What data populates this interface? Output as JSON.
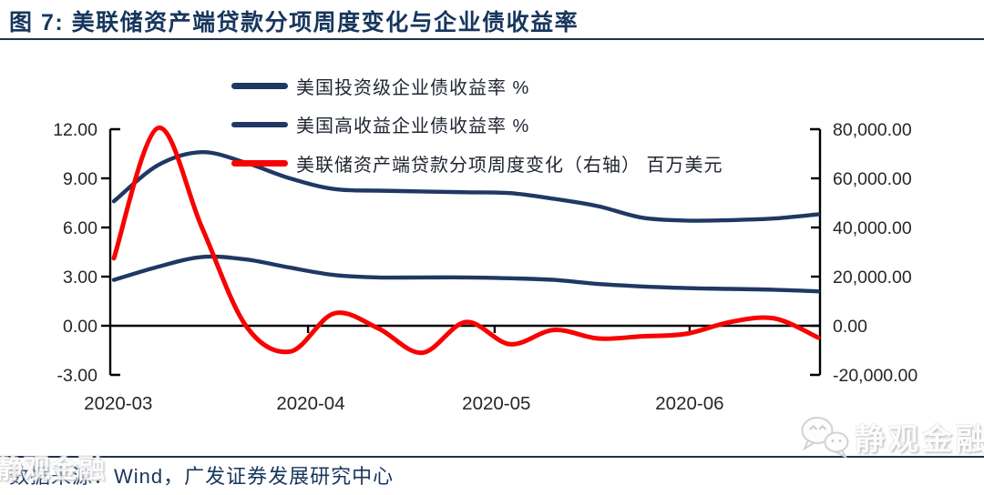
{
  "header": {
    "title": "图 7:  美联储资产端贷款分项周度变化与企业债收益率"
  },
  "legend": {
    "items": [
      {
        "label": "美国投资级企业债收益率 %",
        "color": "#1F3864"
      },
      {
        "label": "美国高收益企业债收益率 %",
        "color": "#1F3864"
      },
      {
        "label": "美联储资产端贷款分项周度变化（右轴） 百万美元",
        "color": "#F80202"
      }
    ]
  },
  "chart_data": {
    "type": "line",
    "title": "美联储资产端贷款分项周度变化与企业债收益率",
    "x_axis": {
      "labels": [
        "2020-03",
        "2020-04",
        "2020-05",
        "2020-06"
      ],
      "label_weeks": [
        0.1,
        4.47,
        8.69,
        13.08
      ],
      "tick_weeks": [
        4.41,
        8.65,
        13.08
      ]
    },
    "left_axis": {
      "unit": "%",
      "range": [
        -3,
        12
      ],
      "tick_values": [
        12,
        9,
        6,
        3,
        0,
        -3
      ],
      "tick_labels": [
        "12.00",
        "9.00",
        "6.00",
        "3.00",
        "0.00",
        "-3.00"
      ]
    },
    "right_axis": {
      "unit": "百万美元",
      "range": [
        -20000,
        80000
      ],
      "tick_values": [
        80000,
        60000,
        40000,
        20000,
        0,
        -20000
      ],
      "tick_labels": [
        "80,000.00",
        "60,000.00",
        "40,000.00",
        "20,000.00",
        "0.00",
        "-20,000.00"
      ]
    },
    "series": [
      {
        "name": "美国投资级企业债收益率 %",
        "axis": "left",
        "color": "#1F3864",
        "width": 4.4,
        "values": [
          2.8,
          3.6,
          4.2,
          4.05,
          3.55,
          3.1,
          2.95,
          2.95,
          2.95,
          2.9,
          2.8,
          2.55,
          2.4,
          2.3,
          2.25,
          2.2,
          2.1
        ]
      },
      {
        "name": "美国高收益企业债收益率 %",
        "axis": "left",
        "color": "#1F3864",
        "width": 4.4,
        "values": [
          7.6,
          9.8,
          10.6,
          9.95,
          9.0,
          8.35,
          8.25,
          8.2,
          8.15,
          8.1,
          7.75,
          7.3,
          6.6,
          6.42,
          6.45,
          6.55,
          6.8
        ]
      },
      {
        "name": "美联储资产端贷款分项周度变化（右轴） 百万美元",
        "axis": "right",
        "color": "#F80202",
        "width": 5,
        "values": [
          27500,
          80500,
          40000,
          0,
          -10500,
          5000,
          -1000,
          -11000,
          1500,
          -7500,
          -1700,
          -5200,
          -4300,
          -3300,
          1500,
          3000,
          -4800
        ]
      }
    ]
  },
  "footer": {
    "source": "数据来源：Wind，广发证券发展研究中心"
  },
  "watermark": {
    "text": "静观金融"
  }
}
